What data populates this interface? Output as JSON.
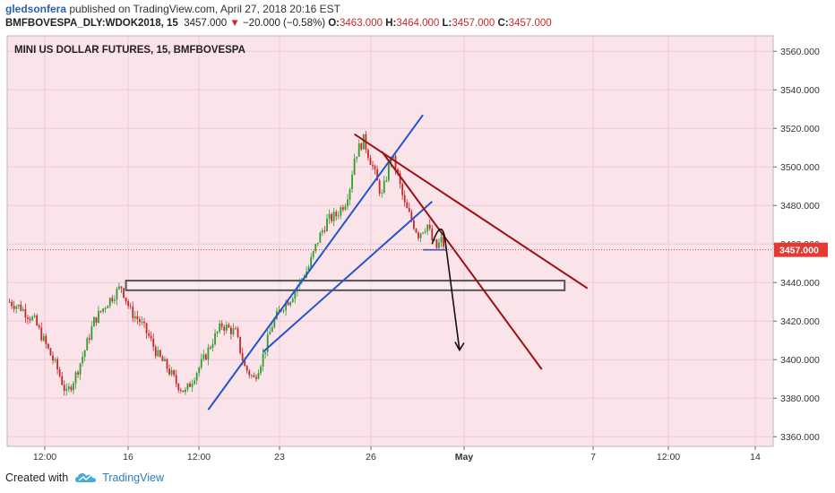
{
  "header": {
    "author": "gledsonfera",
    "published_text": "published on TradingView.com, April 27, 2018 20:16 EST",
    "symbol": "BMFBOVESPA_DLY:WDOK2018, 15",
    "last": "3457.000",
    "arrow": "▼",
    "change": "−20.000 (−0.58%)",
    "o_label": "O:",
    "o_val": "3463.000",
    "h_label": "H:",
    "h_val": "3464.000",
    "l_label": "L:",
    "l_val": "3457.000",
    "c_label": "C:",
    "c_val": "3457.000"
  },
  "footer": {
    "created_with": "Created with",
    "brand": "TradingView",
    "brand_icon": "tradingview-cloud-icon"
  },
  "colors": {
    "plot_bg": "#fbe3ea",
    "up_candle": "#2e9e2e",
    "down_candle": "#c62828",
    "blue_line": "#2255cc",
    "red_line": "#9b1010",
    "price_tag": "#e53935"
  },
  "chart_data": {
    "type": "candlestick",
    "title": "MINI US DOLLAR FUTURES, 15, BMFBOVESPA",
    "ylim": [
      3355,
      3568
    ],
    "y_ticks": [
      "3560.000",
      "3540.000",
      "3520.000",
      "3500.000",
      "3480.000",
      "3460.000",
      "3440.000",
      "3420.000",
      "3400.000",
      "3380.000",
      "3360.000"
    ],
    "x_ticks": [
      "12:00",
      "16",
      "12:00",
      "23",
      "26",
      "May",
      "7",
      "12:00",
      "14"
    ],
    "last_price_label": "3457.000",
    "last_price": 3457,
    "series": [
      {
        "name": "",
        "close_path": [
          [
            0.5,
            3430
          ],
          [
            3,
            3427
          ],
          [
            6,
            3420
          ],
          [
            9,
            3405
          ],
          [
            11,
            3395
          ],
          [
            13,
            3382
          ],
          [
            15,
            3392
          ],
          [
            17,
            3405
          ],
          [
            19,
            3420
          ],
          [
            22,
            3430
          ],
          [
            25,
            3438
          ],
          [
            27,
            3425
          ],
          [
            29,
            3420
          ],
          [
            31,
            3412
          ],
          [
            33,
            3402
          ],
          [
            35,
            3396
          ],
          [
            37,
            3388
          ],
          [
            39,
            3383
          ],
          [
            41,
            3392
          ],
          [
            43,
            3400
          ],
          [
            45,
            3410
          ],
          [
            47,
            3418
          ],
          [
            50,
            3414
          ],
          [
            52,
            3396
          ],
          [
            54,
            3390
          ],
          [
            56,
            3402
          ],
          [
            58,
            3418
          ],
          [
            60,
            3427
          ],
          [
            62,
            3432
          ],
          [
            64,
            3440
          ],
          [
            66,
            3448
          ],
          [
            68,
            3462
          ],
          [
            70,
            3472
          ],
          [
            72,
            3475
          ],
          [
            74,
            3482
          ],
          [
            75,
            3490
          ],
          [
            76,
            3505
          ],
          [
            77,
            3510
          ],
          [
            78,
            3514
          ],
          [
            79,
            3507
          ],
          [
            80,
            3500
          ],
          [
            81,
            3492
          ],
          [
            82,
            3485
          ],
          [
            83,
            3495
          ],
          [
            84,
            3506
          ],
          [
            85,
            3500
          ],
          [
            86,
            3490
          ],
          [
            87,
            3480
          ],
          [
            88,
            3475
          ],
          [
            89,
            3470
          ],
          [
            90,
            3465
          ],
          [
            91,
            3468
          ],
          [
            92,
            3470
          ],
          [
            93,
            3462
          ],
          [
            94,
            3458
          ],
          [
            95,
            3462
          ],
          [
            96,
            3457
          ]
        ]
      }
    ],
    "annotations": [
      {
        "type": "rectangle",
        "t1": 26,
        "t2": 122,
        "p1": 3441,
        "p2": 3436,
        "color": "#555555"
      },
      {
        "type": "trendline",
        "t1": 44,
        "p1": 3374,
        "t2": 91,
        "p2": 3527,
        "color": "#2255cc"
      },
      {
        "type": "trendline",
        "t1": 56,
        "p1": 3404,
        "t2": 93,
        "p2": 3482,
        "color": "#2255cc"
      },
      {
        "type": "trendline",
        "t1": 76,
        "p1": 3517,
        "t2": 127,
        "p2": 3437,
        "color": "#9b1010"
      },
      {
        "type": "trendline",
        "t1": 82,
        "p1": 3508,
        "t2": 117,
        "p2": 3395,
        "color": "#9b1010"
      },
      {
        "type": "hline",
        "t1": 91,
        "t2": 96,
        "p": 3457,
        "color": "#2255cc"
      },
      {
        "type": "arrow_curve",
        "from": [
          93,
          3460
        ],
        "peak": [
          95,
          3467
        ],
        "to": [
          99,
          3405
        ],
        "color": "#111111"
      }
    ],
    "grid": true,
    "price_axis": "right"
  }
}
